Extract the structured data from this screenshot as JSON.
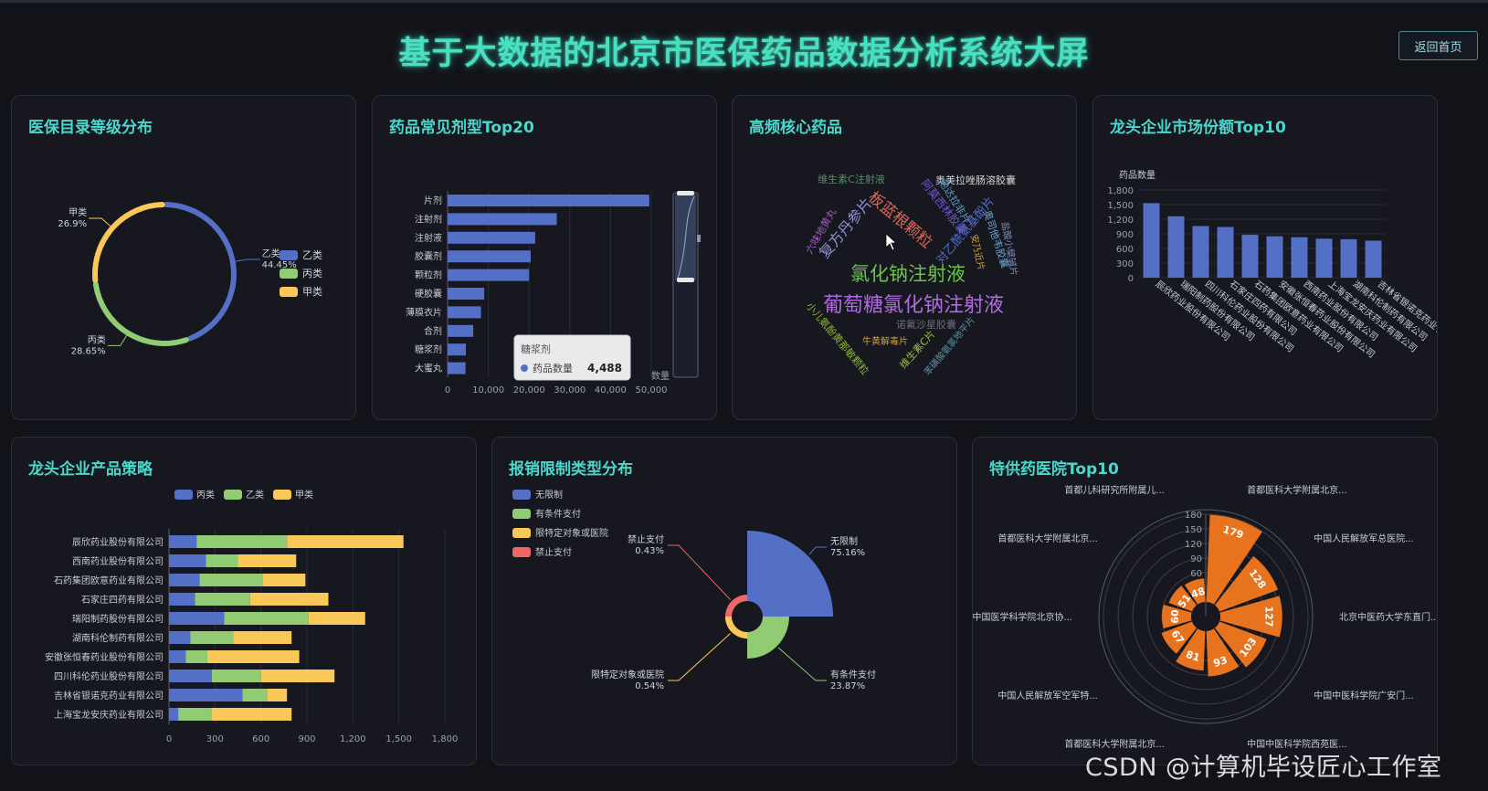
{
  "header": {
    "title": "基于大数据的北京市医保药品数据分析系统大屏",
    "back_label": "返回首页"
  },
  "panels": {
    "p1": "医保目录等级分布",
    "p2": "药品常见剂型Top20",
    "p3": "高频核心药品",
    "p4": "龙头企业市场份额Top10",
    "p5": "龙头企业产品策略",
    "p6": "报销限制类型分布",
    "p7": "特供药医院Top10"
  },
  "chart_data": [
    {
      "id": "level",
      "type": "pie",
      "variant": "ring",
      "slices": [
        {
          "name": "乙类",
          "value": 44.45,
          "label": "44.45%",
          "color": "#5470c6"
        },
        {
          "name": "丙类",
          "value": 28.65,
          "label": "28.65%",
          "color": "#91cc75"
        },
        {
          "name": "甲类",
          "value": 26.9,
          "label": "26.9%",
          "color": "#fac858"
        }
      ],
      "legend": [
        "乙类",
        "丙类",
        "甲类"
      ],
      "legend_position": "right"
    },
    {
      "id": "dosage",
      "type": "bar",
      "orientation": "horizontal",
      "categories": [
        "片剂",
        "注射剂",
        "注射液",
        "胶囊剂",
        "颗粒剂",
        "硬胶囊",
        "薄膜衣片",
        "合剂",
        "糖浆剂",
        "大蜜丸"
      ],
      "values": [
        49500,
        26800,
        21500,
        20400,
        20000,
        9000,
        8200,
        6300,
        4488,
        4400
      ],
      "xlim": [
        0,
        50000
      ],
      "xticks": [
        "0",
        "10,000",
        "20,000",
        "30,000",
        "40,000",
        "50,000"
      ],
      "axis_name": "数量",
      "tooltip": {
        "category": "糖浆剂",
        "series": "药品数量",
        "value": "4,488"
      },
      "color": "#5470c6",
      "datazoom": true
    },
    {
      "id": "wordcloud",
      "type": "wordcloud",
      "words": [
        {
          "text": "葡萄糖氯化钠注射液",
          "color": "#b06be0"
        },
        {
          "text": "氯化钠注射液",
          "color": "#6cc24a"
        },
        {
          "text": "板蓝根颗粒",
          "color": "#d8695c"
        },
        {
          "text": "复方丹参片",
          "color": "#8c8fd6"
        },
        {
          "text": "阿莫西林胶囊",
          "color": "#6a5acd"
        },
        {
          "text": "维生素C注射液",
          "color": "#5c8f6e"
        },
        {
          "text": "奥美拉唑肠溶胶囊",
          "color": "#d8d8d8"
        },
        {
          "text": "他达拉非片",
          "color": "#5aa0c8"
        },
        {
          "text": "对乙酰氨基酚片",
          "color": "#5470c6"
        },
        {
          "text": "盐酸小檗碱片",
          "color": "#7f8cba"
        },
        {
          "text": "奥司他韦胶囊",
          "color": "#6ea6d4"
        },
        {
          "text": "安乃近片",
          "color": "#c9a43a"
        },
        {
          "text": "六味地黄丸",
          "color": "#a05cc0"
        },
        {
          "text": "小儿氨酚黄那敏颗粒",
          "color": "#8db33a"
        },
        {
          "text": "诺氟沙星胶囊",
          "color": "#6b6b7b"
        },
        {
          "text": "牛黄解毒片",
          "color": "#d0a03a"
        },
        {
          "text": "维生素C片",
          "color": "#9fc23a"
        },
        {
          "text": "苯磺酸氨氯地平片",
          "color": "#5c8fa6"
        }
      ]
    },
    {
      "id": "share",
      "type": "bar",
      "ylabel": "药品数量",
      "ylim": [
        0,
        1800
      ],
      "yticks": [
        "0",
        "300",
        "600",
        "900",
        "1,200",
        "1,500",
        "1,800"
      ],
      "categories": [
        "辰欣药业股份有限公司",
        "瑞阳制药股份有限公司",
        "四川科伦药业股份有限公司",
        "石家庄四药有限公司",
        "石药集团欧意药业有限公司",
        "安徽张恒春药业股份有限公司",
        "西南药业股份有限公司",
        "上海宝龙安庆药业有限公司",
        "湖南科伦制药有限公司",
        "吉林省银诺克药业有限公司"
      ],
      "values": [
        1530,
        1260,
        1060,
        1040,
        880,
        850,
        830,
        800,
        790,
        760
      ],
      "color": "#5470c6"
    },
    {
      "id": "strategy",
      "type": "bar",
      "orientation": "horizontal",
      "stacked": true,
      "legend": [
        "丙类",
        "乙类",
        "甲类"
      ],
      "legend_position": "top",
      "categories": [
        "辰欣药业股份有限公司",
        "西南药业股份有限公司",
        "石药集团欧意药业有限公司",
        "石家庄四药有限公司",
        "瑞阳制药股份有限公司",
        "湖南科伦制药有限公司",
        "安徽张恒春药业股份有限公司",
        "四川科伦药业股份有限公司",
        "吉林省银诺克药业有限公司",
        "上海宝龙安庆药业有限公司"
      ],
      "series": [
        {
          "name": "丙类",
          "color": "#5470c6",
          "values": [
            180,
            240,
            200,
            170,
            360,
            140,
            110,
            280,
            480,
            60
          ]
        },
        {
          "name": "乙类",
          "color": "#91cc75",
          "values": [
            590,
            210,
            410,
            360,
            550,
            280,
            140,
            320,
            160,
            220
          ]
        },
        {
          "name": "甲类",
          "color": "#fac858",
          "values": [
            760,
            380,
            280,
            510,
            370,
            380,
            600,
            480,
            130,
            520
          ]
        }
      ],
      "xlim": [
        0,
        1800
      ],
      "xticks": [
        "0",
        "300",
        "600",
        "900",
        "1,200",
        "1,500",
        "1,800"
      ]
    },
    {
      "id": "reimburse",
      "type": "pie",
      "variant": "rose",
      "legend": [
        "无限制",
        "有条件支付",
        "限特定对象或医院",
        "禁止支付"
      ],
      "legend_position": "top-left",
      "slices": [
        {
          "name": "无限制",
          "value": 75.16,
          "label": "75.16%",
          "color": "#5470c6"
        },
        {
          "name": "有条件支付",
          "value": 23.87,
          "label": "23.87%",
          "color": "#91cc75"
        },
        {
          "name": "限特定对象或医院",
          "value": 0.54,
          "label": "0.54%",
          "color": "#fac858"
        },
        {
          "name": "禁止支付",
          "value": 0.43,
          "label": "0.43%",
          "color": "#ee6666"
        }
      ]
    },
    {
      "id": "hospital",
      "type": "bar",
      "variant": "polar",
      "rlim": [
        0,
        180
      ],
      "rticks": [
        "30",
        "60",
        "90",
        "120",
        "150",
        "180"
      ],
      "color": "#e8731f",
      "categories": [
        "首都医科大学附属北京...",
        "中国人民解放军总医院...",
        "北京中医药大学东直门...",
        "中国中医科学院广安门...",
        "中国中医科学院西苑医...",
        "首都医科大学附属北京...",
        "中国人民解放军空军特...",
        "中国医学科学院北京协...",
        "首都医科大学附属北京...",
        "首都儿科研究所附属儿..."
      ],
      "values": [
        179,
        128,
        127,
        103,
        93,
        81,
        67,
        60,
        51,
        48
      ]
    }
  ],
  "watermark": "CSDN @计算机毕设匠心工作室"
}
